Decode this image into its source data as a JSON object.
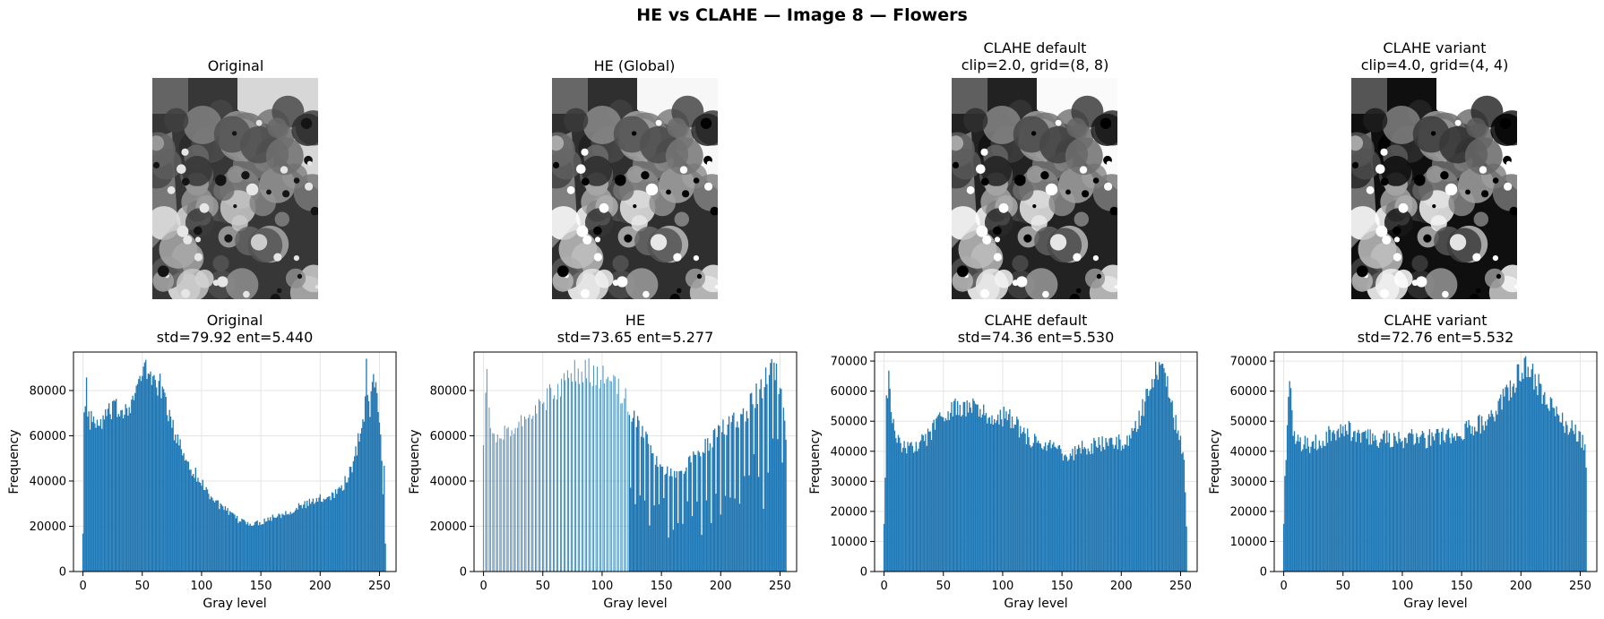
{
  "suptitle": "HE vs CLAHE — Image 8 — Flowers",
  "images": [
    {
      "title": "Original"
    },
    {
      "title": "HE (Global)"
    },
    {
      "title": "CLAHE default\nclip=2.0, grid=(8, 8)"
    },
    {
      "title": "CLAHE variant\nclip=4.0, grid=(4, 4)"
    }
  ],
  "colors": {
    "bar": "#1f77b4",
    "grid": "#e5e5e5",
    "axis": "#000000"
  },
  "chart_data": [
    {
      "type": "bar",
      "title": "Original\nstd=79.92  ent=5.440",
      "xlabel": "Gray level",
      "ylabel": "Frequency",
      "xlim": [
        -8,
        264
      ],
      "ylim": [
        0,
        97000
      ],
      "xticks": [
        0,
        50,
        100,
        150,
        200,
        250
      ],
      "yticks": [
        0,
        20000,
        40000,
        60000,
        80000
      ],
      "grid": true,
      "profile": [
        [
          0,
          18000
        ],
        [
          1,
          70000
        ],
        [
          2,
          72000
        ],
        [
          3,
          84000
        ],
        [
          4,
          66000
        ],
        [
          8,
          68000
        ],
        [
          12,
          63000
        ],
        [
          18,
          68000
        ],
        [
          25,
          71000
        ],
        [
          35,
          72000
        ],
        [
          42,
          76000
        ],
        [
          48,
          84000
        ],
        [
          52,
          89000
        ],
        [
          56,
          87000
        ],
        [
          60,
          85000
        ],
        [
          65,
          82000
        ],
        [
          70,
          75000
        ],
        [
          75,
          64000
        ],
        [
          80,
          58000
        ],
        [
          85,
          52000
        ],
        [
          90,
          47000
        ],
        [
          100,
          39000
        ],
        [
          110,
          32000
        ],
        [
          120,
          27000
        ],
        [
          130,
          23000
        ],
        [
          140,
          21500
        ],
        [
          145,
          21000
        ],
        [
          150,
          22000
        ],
        [
          160,
          24000
        ],
        [
          170,
          26000
        ],
        [
          180,
          28000
        ],
        [
          190,
          30000
        ],
        [
          200,
          32000
        ],
        [
          210,
          34000
        ],
        [
          218,
          37000
        ],
        [
          224,
          42000
        ],
        [
          229,
          50000
        ],
        [
          233,
          60000
        ],
        [
          236,
          67000
        ],
        [
          238,
          75000
        ],
        [
          239,
          92000
        ],
        [
          240,
          78000
        ],
        [
          242,
          68000
        ],
        [
          244,
          88000
        ],
        [
          246,
          86000
        ],
        [
          248,
          79000
        ],
        [
          250,
          65000
        ],
        [
          252,
          50000
        ],
        [
          253,
          35000
        ],
        [
          254,
          49000
        ],
        [
          255,
          12000
        ]
      ]
    },
    {
      "type": "bar",
      "title": "HE\nstd=73.65  ent=5.277",
      "xlabel": "Gray level",
      "ylabel": "Frequency",
      "xlim": [
        -8,
        264
      ],
      "ylim": [
        0,
        97000
      ],
      "xticks": [
        0,
        50,
        100,
        150,
        200,
        250
      ],
      "yticks": [
        0,
        20000,
        40000,
        60000,
        80000
      ],
      "grid": true,
      "profile": [
        [
          0,
          60000
        ],
        [
          3,
          84000
        ],
        [
          6,
          62000
        ],
        [
          12,
          57000
        ],
        [
          20,
          62000
        ],
        [
          30,
          67000
        ],
        [
          40,
          70000
        ],
        [
          50,
          74000
        ],
        [
          60,
          80000
        ],
        [
          70,
          86000
        ],
        [
          80,
          89000
        ],
        [
          90,
          88000
        ],
        [
          100,
          86000
        ],
        [
          110,
          82000
        ],
        [
          118,
          78000
        ],
        [
          125,
          70000
        ],
        [
          135,
          60000
        ],
        [
          145,
          50000
        ],
        [
          155,
          44000
        ],
        [
          160,
          42000
        ],
        [
          170,
          46000
        ],
        [
          180,
          52000
        ],
        [
          190,
          57000
        ],
        [
          200,
          62000
        ],
        [
          210,
          66000
        ],
        [
          220,
          70000
        ],
        [
          230,
          78000
        ],
        [
          240,
          86000
        ],
        [
          245,
          90000
        ],
        [
          250,
          80000
        ],
        [
          255,
          60000
        ]
      ],
      "sparse_start": 0,
      "sparse_end": 122
    },
    {
      "type": "bar",
      "title": "CLAHE default\nstd=74.36  ent=5.530",
      "xlabel": "Gray level",
      "ylabel": "Frequency",
      "xlim": [
        -8,
        264
      ],
      "ylim": [
        0,
        73000
      ],
      "xticks": [
        0,
        50,
        100,
        150,
        200,
        250
      ],
      "yticks": [
        0,
        10000,
        20000,
        30000,
        40000,
        50000,
        60000,
        70000
      ],
      "grid": true,
      "profile": [
        [
          0,
          17000
        ],
        [
          1,
          30000
        ],
        [
          2,
          55000
        ],
        [
          4,
          64000
        ],
        [
          7,
          50000
        ],
        [
          10,
          44000
        ],
        [
          15,
          41000
        ],
        [
          25,
          42000
        ],
        [
          35,
          44000
        ],
        [
          45,
          49000
        ],
        [
          55,
          53000
        ],
        [
          65,
          55000
        ],
        [
          75,
          54000
        ],
        [
          85,
          52000
        ],
        [
          95,
          52000
        ],
        [
          105,
          51000
        ],
        [
          115,
          47000
        ],
        [
          125,
          44000
        ],
        [
          135,
          42000
        ],
        [
          145,
          40000
        ],
        [
          155,
          38500
        ],
        [
          165,
          41000
        ],
        [
          175,
          42000
        ],
        [
          185,
          42000
        ],
        [
          195,
          42500
        ],
        [
          205,
          43000
        ],
        [
          212,
          48000
        ],
        [
          218,
          54000
        ],
        [
          224,
          62000
        ],
        [
          230,
          68000
        ],
        [
          235,
          67000
        ],
        [
          240,
          60000
        ],
        [
          245,
          50000
        ],
        [
          250,
          44000
        ],
        [
          253,
          38000
        ],
        [
          255,
          16000
        ]
      ]
    },
    {
      "type": "bar",
      "title": "CLAHE variant\nstd=72.76  ent=5.532",
      "xlabel": "Gray level",
      "ylabel": "Frequency",
      "xlim": [
        -8,
        264
      ],
      "ylim": [
        0,
        73000
      ],
      "xticks": [
        0,
        50,
        100,
        150,
        200,
        250
      ],
      "yticks": [
        0,
        10000,
        20000,
        30000,
        40000,
        50000,
        60000,
        70000
      ],
      "grid": true,
      "profile": [
        [
          0,
          17000
        ],
        [
          1,
          30000
        ],
        [
          3,
          48000
        ],
        [
          5,
          63000
        ],
        [
          8,
          47000
        ],
        [
          12,
          43000
        ],
        [
          20,
          42000
        ],
        [
          30,
          43000
        ],
        [
          40,
          46000
        ],
        [
          50,
          48000
        ],
        [
          60,
          46000
        ],
        [
          70,
          45000
        ],
        [
          80,
          44000
        ],
        [
          90,
          44000
        ],
        [
          100,
          44000
        ],
        [
          110,
          45000
        ],
        [
          120,
          44000
        ],
        [
          130,
          45000
        ],
        [
          140,
          45000
        ],
        [
          150,
          46000
        ],
        [
          160,
          48000
        ],
        [
          170,
          50000
        ],
        [
          180,
          54000
        ],
        [
          190,
          60000
        ],
        [
          198,
          66000
        ],
        [
          205,
          68000
        ],
        [
          212,
          64000
        ],
        [
          220,
          58000
        ],
        [
          230,
          52000
        ],
        [
          240,
          48000
        ],
        [
          250,
          45000
        ],
        [
          254,
          40000
        ],
        [
          255,
          36000
        ]
      ]
    }
  ]
}
